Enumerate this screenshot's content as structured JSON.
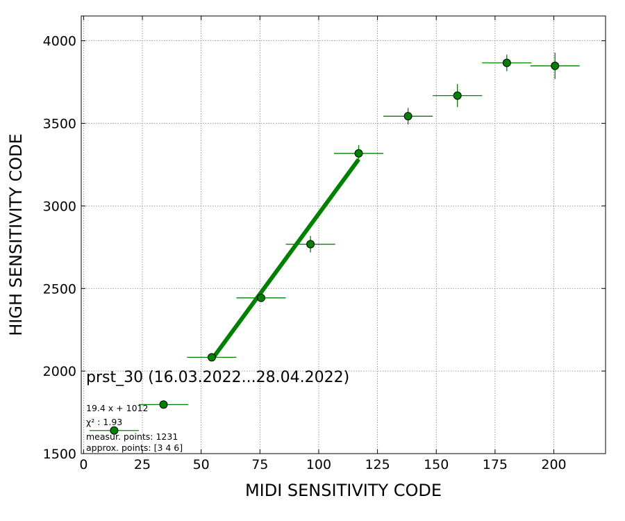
{
  "chart_data": {
    "type": "scatter",
    "xlabel": "MIDI SENSITIVITY CODE",
    "ylabel": "HIGH SENSITIVITY CODE",
    "xlim": [
      -1,
      222
    ],
    "ylim": [
      1500,
      4150
    ],
    "xticks": [
      0,
      25,
      50,
      75,
      100,
      125,
      150,
      175,
      200
    ],
    "xtick_labels": [
      "0",
      "25",
      "50",
      "75",
      "100",
      "125",
      "150",
      "175",
      "200"
    ],
    "yticks": [
      1500,
      2000,
      2500,
      3000,
      3500,
      4000
    ],
    "ytick_labels": [
      "1500",
      "2000",
      "2500",
      "3000",
      "3500",
      "4000"
    ],
    "grid": true,
    "colors": {
      "marker_fill": "#008000",
      "marker_edge": "#000000",
      "errorbar": "#008000",
      "fit_line": "#008000",
      "grid": "#808080"
    },
    "points": [
      {
        "x": 13,
        "y": 1640,
        "xerr": 10.5,
        "yerr": 0
      },
      {
        "x": 34,
        "y": 1797,
        "xerr": 10.5,
        "yerr": 0
      },
      {
        "x": 54.5,
        "y": 2083,
        "xerr": 10.5,
        "yerr": 0
      },
      {
        "x": 75.5,
        "y": 2443,
        "xerr": 10.5,
        "yerr": 0
      },
      {
        "x": 96.5,
        "y": 2768,
        "xerr": 10.5,
        "yerr": 50
      },
      {
        "x": 117,
        "y": 3318,
        "xerr": 10.5,
        "yerr": 50
      },
      {
        "x": 138,
        "y": 3543,
        "xerr": 10.5,
        "yerr": 50
      },
      {
        "x": 159,
        "y": 3668,
        "xerr": 10.5,
        "yerr": 70
      },
      {
        "x": 180,
        "y": 3866,
        "xerr": 10.5,
        "yerr": 50
      },
      {
        "x": 200.5,
        "y": 3848,
        "xerr": 10.5,
        "yerr": 80
      }
    ],
    "fit_line": {
      "x": [
        54.5,
        117
      ],
      "y": [
        2069,
        3282
      ]
    },
    "annotations": {
      "title": "prst_30 (16.03.2022...28.04.2022)",
      "fit_formula": "19.4 x + 1012",
      "chi2_label": "χ² : 1.93",
      "measur_points": "measur. points: 1231",
      "approx_points": "approx. points: [3 4 6]"
    }
  }
}
